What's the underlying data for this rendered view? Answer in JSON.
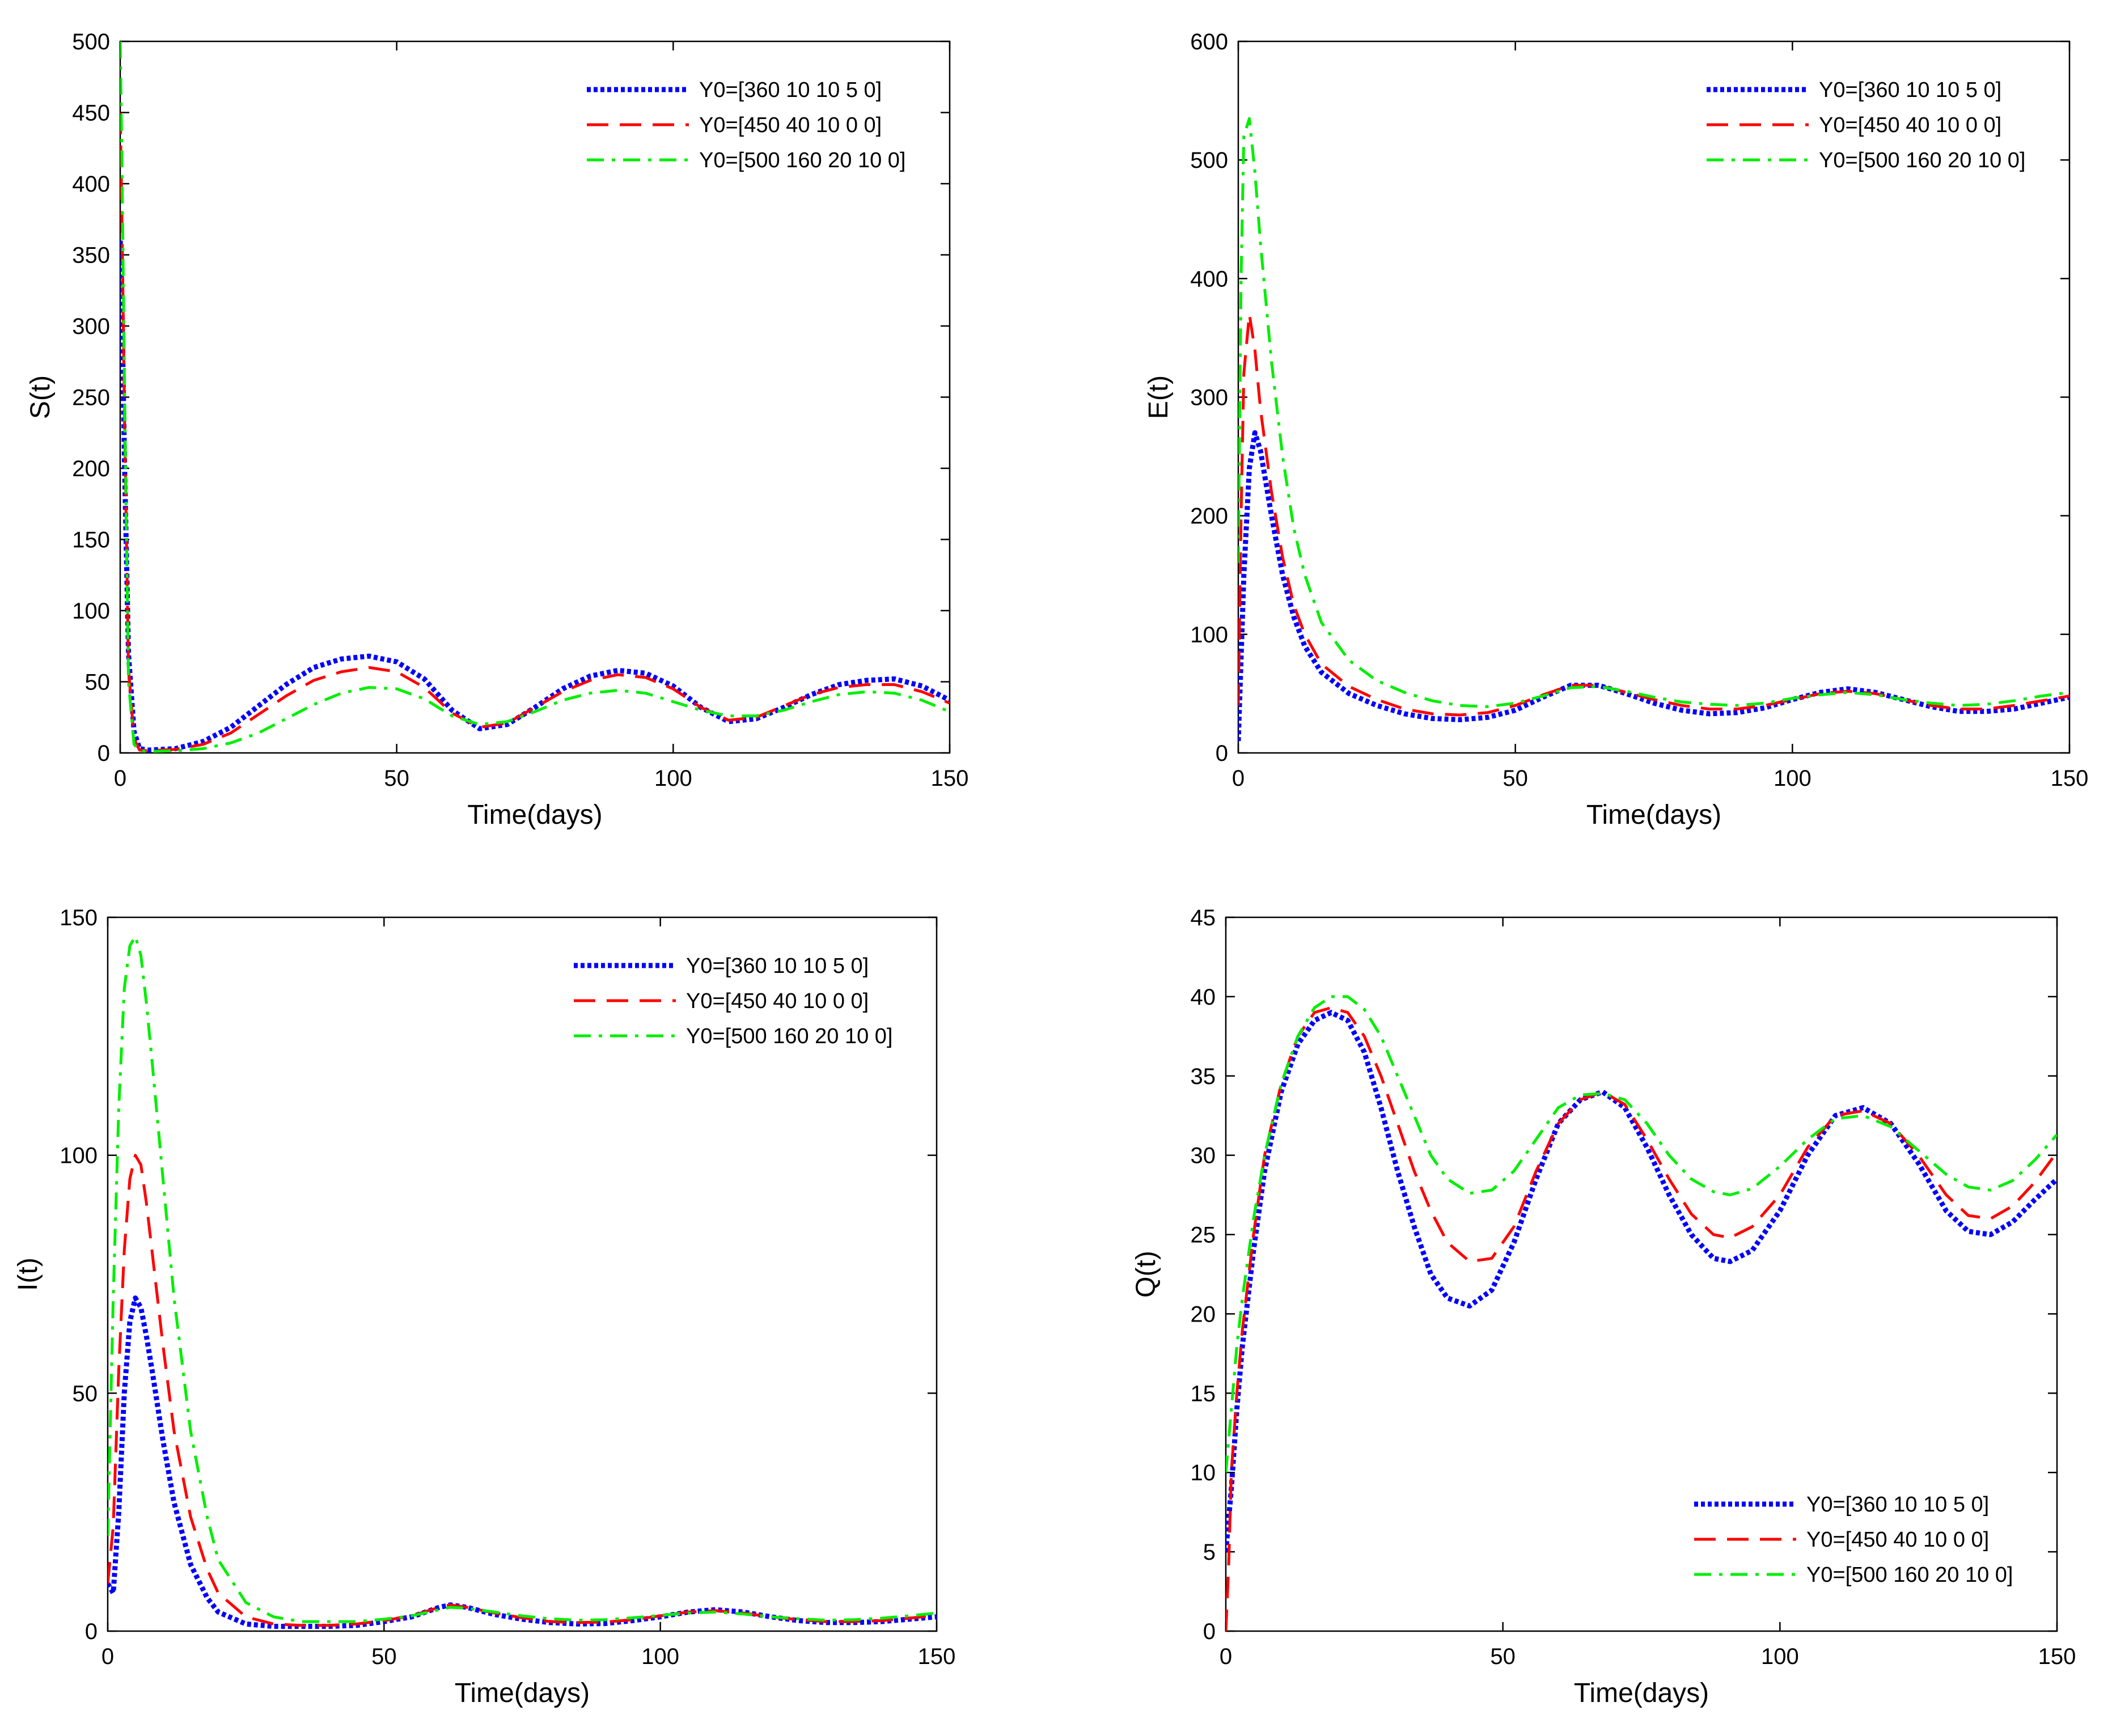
{
  "chart_data": [
    {
      "id": "S",
      "type": "line",
      "xlabel": "Time(days)",
      "ylabel": "S(t)",
      "xlim": [
        0,
        150
      ],
      "ylim": [
        0,
        500
      ],
      "xticks": [
        0,
        50,
        100,
        150
      ],
      "yticks": [
        0,
        50,
        100,
        150,
        200,
        250,
        300,
        350,
        400,
        450,
        500
      ],
      "legend": "top-right",
      "series": [
        {
          "name": "Y0=[360 10 10 5 0]",
          "color": "#0000ff",
          "style": "dotted",
          "x": [
            0,
            0.3,
            0.8,
            1.5,
            2.5,
            3.5,
            5,
            10,
            15,
            20,
            25,
            30,
            35,
            40,
            45,
            50,
            55,
            60,
            65,
            70,
            75,
            80,
            85,
            90,
            95,
            100,
            105,
            110,
            115,
            120,
            125,
            130,
            135,
            140,
            145,
            150
          ],
          "y": [
            360,
            320,
            200,
            70,
            15,
            3,
            2,
            3,
            8,
            18,
            33,
            48,
            60,
            66,
            68,
            64,
            52,
            30,
            17,
            20,
            32,
            45,
            54,
            58,
            56,
            47,
            32,
            22,
            24,
            32,
            41,
            48,
            51,
            52,
            47,
            37
          ]
        },
        {
          "name": "Y0=[450 40 10 0 0]",
          "color": "#ff0000",
          "style": "dashed",
          "x": [
            0,
            0.3,
            0.8,
            1.5,
            2.5,
            3.5,
            5,
            10,
            15,
            20,
            25,
            30,
            35,
            40,
            45,
            50,
            55,
            60,
            65,
            70,
            75,
            80,
            85,
            90,
            95,
            100,
            105,
            110,
            115,
            120,
            125,
            130,
            135,
            140,
            145,
            150
          ],
          "y": [
            450,
            380,
            230,
            60,
            10,
            2,
            1.5,
            2.5,
            6,
            14,
            27,
            40,
            51,
            57,
            60,
            57,
            46,
            28,
            18,
            21,
            32,
            43,
            51,
            55,
            53,
            45,
            32,
            23,
            25,
            33,
            41,
            46,
            48,
            48,
            43,
            35
          ]
        },
        {
          "name": "Y0=[500 160 20 10 0]",
          "color": "#00ee00",
          "style": "dashdot",
          "x": [
            0,
            0.3,
            0.8,
            1.5,
            2.5,
            3.5,
            5,
            10,
            15,
            20,
            25,
            30,
            35,
            40,
            45,
            50,
            55,
            60,
            65,
            70,
            75,
            80,
            85,
            90,
            95,
            100,
            105,
            110,
            115,
            120,
            125,
            130,
            135,
            140,
            145,
            150
          ],
          "y": [
            500,
            420,
            250,
            50,
            6,
            1.5,
            1,
            1.5,
            3,
            7,
            14,
            24,
            34,
            42,
            46,
            45,
            38,
            26,
            20,
            22,
            29,
            37,
            42,
            44,
            42,
            36,
            30,
            26,
            26,
            30,
            36,
            41,
            43,
            42,
            37,
            29
          ]
        }
      ]
    },
    {
      "id": "E",
      "type": "line",
      "xlabel": "Time(days)",
      "ylabel": "E(t)",
      "xlim": [
        0,
        150
      ],
      "ylim": [
        0,
        600
      ],
      "xticks": [
        0,
        50,
        100,
        150
      ],
      "yticks": [
        0,
        100,
        200,
        300,
        400,
        500,
        600
      ],
      "legend": "top-right",
      "series": [
        {
          "name": "Y0=[360 10 10 5 0]",
          "color": "#0000ff",
          "style": "dotted",
          "x": [
            0,
            1,
            2,
            3,
            4,
            6,
            8,
            10,
            12,
            15,
            20,
            25,
            30,
            35,
            40,
            45,
            50,
            55,
            60,
            65,
            70,
            75,
            80,
            85,
            90,
            95,
            100,
            105,
            110,
            115,
            120,
            125,
            130,
            135,
            140,
            145,
            150
          ],
          "y": [
            10,
            150,
            240,
            270,
            255,
            200,
            150,
            115,
            90,
            68,
            50,
            40,
            33,
            29,
            28,
            30,
            36,
            47,
            57,
            57,
            50,
            42,
            36,
            33,
            34,
            38,
            45,
            51,
            54,
            51,
            45,
            39,
            35,
            35,
            37,
            42,
            47
          ]
        },
        {
          "name": "Y0=[450 40 10 0 0]",
          "color": "#ff0000",
          "style": "dashed",
          "x": [
            0,
            0.5,
            1,
            2,
            3,
            4,
            6,
            8,
            10,
            12,
            15,
            20,
            25,
            30,
            35,
            40,
            45,
            50,
            55,
            60,
            65,
            70,
            75,
            80,
            85,
            90,
            95,
            100,
            105,
            110,
            115,
            120,
            125,
            130,
            135,
            140,
            145,
            150
          ],
          "y": [
            40,
            200,
            320,
            370,
            340,
            290,
            220,
            165,
            125,
            100,
            75,
            56,
            45,
            37,
            33,
            32,
            34,
            40,
            49,
            57,
            57,
            51,
            45,
            40,
            37,
            37,
            40,
            45,
            50,
            52,
            50,
            45,
            40,
            37,
            37,
            40,
            44,
            48
          ]
        },
        {
          "name": "Y0=[500 160 20 10 0]",
          "color": "#00ee00",
          "style": "dashdot",
          "x": [
            0,
            0.5,
            1,
            2,
            3,
            4,
            6,
            8,
            10,
            12,
            15,
            20,
            25,
            30,
            35,
            40,
            45,
            50,
            55,
            60,
            65,
            70,
            75,
            80,
            85,
            90,
            95,
            100,
            105,
            110,
            115,
            120,
            125,
            130,
            135,
            140,
            145,
            150
          ],
          "y": [
            160,
            400,
            520,
            535,
            490,
            430,
            330,
            250,
            190,
            150,
            110,
            78,
            61,
            51,
            44,
            40,
            39,
            42,
            48,
            55,
            56,
            52,
            47,
            43,
            41,
            40,
            42,
            46,
            49,
            51,
            49,
            45,
            42,
            40,
            41,
            44,
            48,
            51
          ]
        }
      ]
    },
    {
      "id": "I",
      "type": "line",
      "xlabel": "Time(days)",
      "ylabel": "I(t)",
      "xlim": [
        0,
        150
      ],
      "ylim": [
        0,
        150
      ],
      "xticks": [
        0,
        50,
        100,
        150
      ],
      "yticks": [
        0,
        50,
        100,
        150
      ],
      "legend": "top-right",
      "series": [
        {
          "name": "Y0=[360 10 10 5 0]",
          "color": "#0000ff",
          "style": "dotted",
          "x": [
            0,
            1,
            2,
            3,
            4,
            5,
            6,
            7,
            8,
            10,
            12,
            15,
            18,
            20,
            25,
            30,
            35,
            40,
            45,
            50,
            55,
            60,
            62,
            65,
            70,
            75,
            80,
            85,
            90,
            95,
            100,
            105,
            110,
            115,
            120,
            125,
            130,
            135,
            140,
            145,
            150
          ],
          "y": [
            10,
            8,
            25,
            50,
            65,
            70,
            68,
            62,
            55,
            40,
            27,
            14,
            7,
            4,
            1.5,
            1,
            1,
            1,
            1.2,
            2,
            3,
            5,
            5.5,
            5,
            3.5,
            2.5,
            1.8,
            1.5,
            1.6,
            2.2,
            3,
            4,
            4.5,
            4,
            3,
            2.2,
            1.8,
            1.8,
            2,
            2.5,
            3
          ]
        },
        {
          "name": "Y0=[450 40 10 0 0]",
          "color": "#ff0000",
          "style": "dashed",
          "x": [
            0,
            1,
            2,
            3,
            4,
            5,
            6,
            7,
            8,
            10,
            12,
            15,
            18,
            20,
            25,
            30,
            35,
            40,
            45,
            50,
            55,
            60,
            62,
            65,
            70,
            75,
            80,
            85,
            90,
            95,
            100,
            105,
            110,
            115,
            120,
            125,
            130,
            135,
            140,
            145,
            150
          ],
          "y": [
            10,
            22,
            55,
            80,
            95,
            100,
            98,
            90,
            80,
            60,
            42,
            24,
            13,
            8,
            3,
            1.5,
            1.2,
            1.2,
            1.5,
            2.2,
            3.2,
            5,
            5.5,
            5,
            3.8,
            2.8,
            2,
            1.8,
            1.9,
            2.4,
            3.2,
            4,
            4.3,
            3.8,
            3,
            2.4,
            2,
            2,
            2.2,
            2.7,
            3.3
          ]
        },
        {
          "name": "Y0=[500 160 20 10 0]",
          "color": "#00ee00",
          "style": "dashdot",
          "x": [
            0,
            1,
            2,
            3,
            4,
            5,
            6,
            7,
            8,
            10,
            12,
            15,
            18,
            20,
            25,
            30,
            35,
            40,
            45,
            50,
            55,
            60,
            62,
            65,
            70,
            75,
            80,
            85,
            90,
            95,
            100,
            105,
            110,
            115,
            120,
            125,
            130,
            135,
            140,
            145,
            150
          ],
          "y": [
            20,
            70,
            110,
            135,
            144,
            146,
            142,
            132,
            120,
            95,
            70,
            42,
            24,
            15,
            6,
            3,
            2,
            2,
            2,
            2.5,
            3.2,
            4.5,
            5,
            4.8,
            4,
            3.2,
            2.6,
            2.3,
            2.4,
            2.8,
            3.3,
            3.8,
            4,
            3.6,
            3,
            2.6,
            2.3,
            2.4,
            2.7,
            3.2,
            3.8
          ]
        }
      ]
    },
    {
      "id": "Q",
      "type": "line",
      "xlabel": "Time(days)",
      "ylabel": "Q(t)",
      "xlim": [
        0,
        150
      ],
      "ylim": [
        0,
        45
      ],
      "xticks": [
        0,
        50,
        100,
        150
      ],
      "yticks": [
        0,
        5,
        10,
        15,
        20,
        25,
        30,
        35,
        40,
        45
      ],
      "legend": "bottom-right",
      "series": [
        {
          "name": "Y0=[360 10 10 5 0]",
          "color": "#0000ff",
          "style": "dotted",
          "x": [
            0,
            1,
            2,
            3,
            5,
            7,
            10,
            13,
            16,
            19,
            22,
            25,
            28,
            31,
            34,
            37,
            40,
            44,
            48,
            52,
            56,
            60,
            64,
            68,
            72,
            76,
            80,
            84,
            88,
            91,
            95,
            100,
            105,
            110,
            115,
            120,
            125,
            130,
            134,
            138,
            142,
            146,
            150
          ],
          "y": [
            5,
            9,
            14,
            18,
            24,
            29,
            34,
            37,
            38.5,
            39,
            38.5,
            36.5,
            33,
            29,
            25.5,
            22.5,
            21,
            20.5,
            21.5,
            24.5,
            28.5,
            32,
            33.5,
            34,
            33,
            30.5,
            27.5,
            25,
            23.5,
            23.3,
            24,
            26.5,
            30,
            32.5,
            33,
            32,
            29.5,
            26.5,
            25.2,
            25,
            25.8,
            27.2,
            28.5
          ]
        },
        {
          "name": "Y0=[450 40 10 0 0]",
          "color": "#ff0000",
          "style": "dashed",
          "x": [
            0,
            0.5,
            1,
            2,
            3,
            5,
            7,
            10,
            13,
            16,
            19,
            22,
            25,
            28,
            31,
            34,
            37,
            40,
            44,
            48,
            52,
            56,
            60,
            64,
            68,
            72,
            76,
            80,
            84,
            88,
            91,
            95,
            100,
            105,
            110,
            115,
            120,
            125,
            130,
            134,
            138,
            142,
            146,
            150
          ],
          "y": [
            0,
            4,
            10,
            15,
            19,
            25,
            30,
            34.5,
            37.5,
            39,
            39.3,
            39,
            37.5,
            35,
            32,
            29,
            26.5,
            24.5,
            23.3,
            23.5,
            25.5,
            29,
            32,
            33.5,
            34,
            33.2,
            31,
            28.5,
            26.3,
            25,
            24.8,
            25.5,
            27.5,
            30.5,
            32.5,
            32.8,
            32,
            30,
            27.5,
            26.2,
            26,
            26.8,
            28.3,
            30.2
          ]
        },
        {
          "name": "Y0=[500 160 20 10 0]",
          "color": "#00ee00",
          "style": "dashdot",
          "x": [
            0,
            1,
            2,
            3,
            5,
            7,
            10,
            13,
            16,
            19,
            22,
            25,
            28,
            31,
            34,
            37,
            40,
            44,
            48,
            52,
            56,
            60,
            64,
            68,
            72,
            76,
            80,
            84,
            88,
            91,
            95,
            100,
            105,
            110,
            115,
            120,
            125,
            130,
            134,
            138,
            142,
            146,
            150
          ],
          "y": [
            10,
            14,
            18,
            21,
            26,
            30,
            34.5,
            37.5,
            39.3,
            40,
            40,
            39.2,
            37.5,
            35,
            32.5,
            30,
            28.5,
            27.6,
            27.8,
            29,
            31,
            33,
            33.8,
            33.9,
            33.5,
            32,
            30,
            28.5,
            27.7,
            27.5,
            27.9,
            29.3,
            31,
            32.3,
            32.5,
            31.8,
            30.3,
            28.8,
            28,
            27.8,
            28.4,
            29.7,
            31.3
          ]
        }
      ]
    }
  ]
}
